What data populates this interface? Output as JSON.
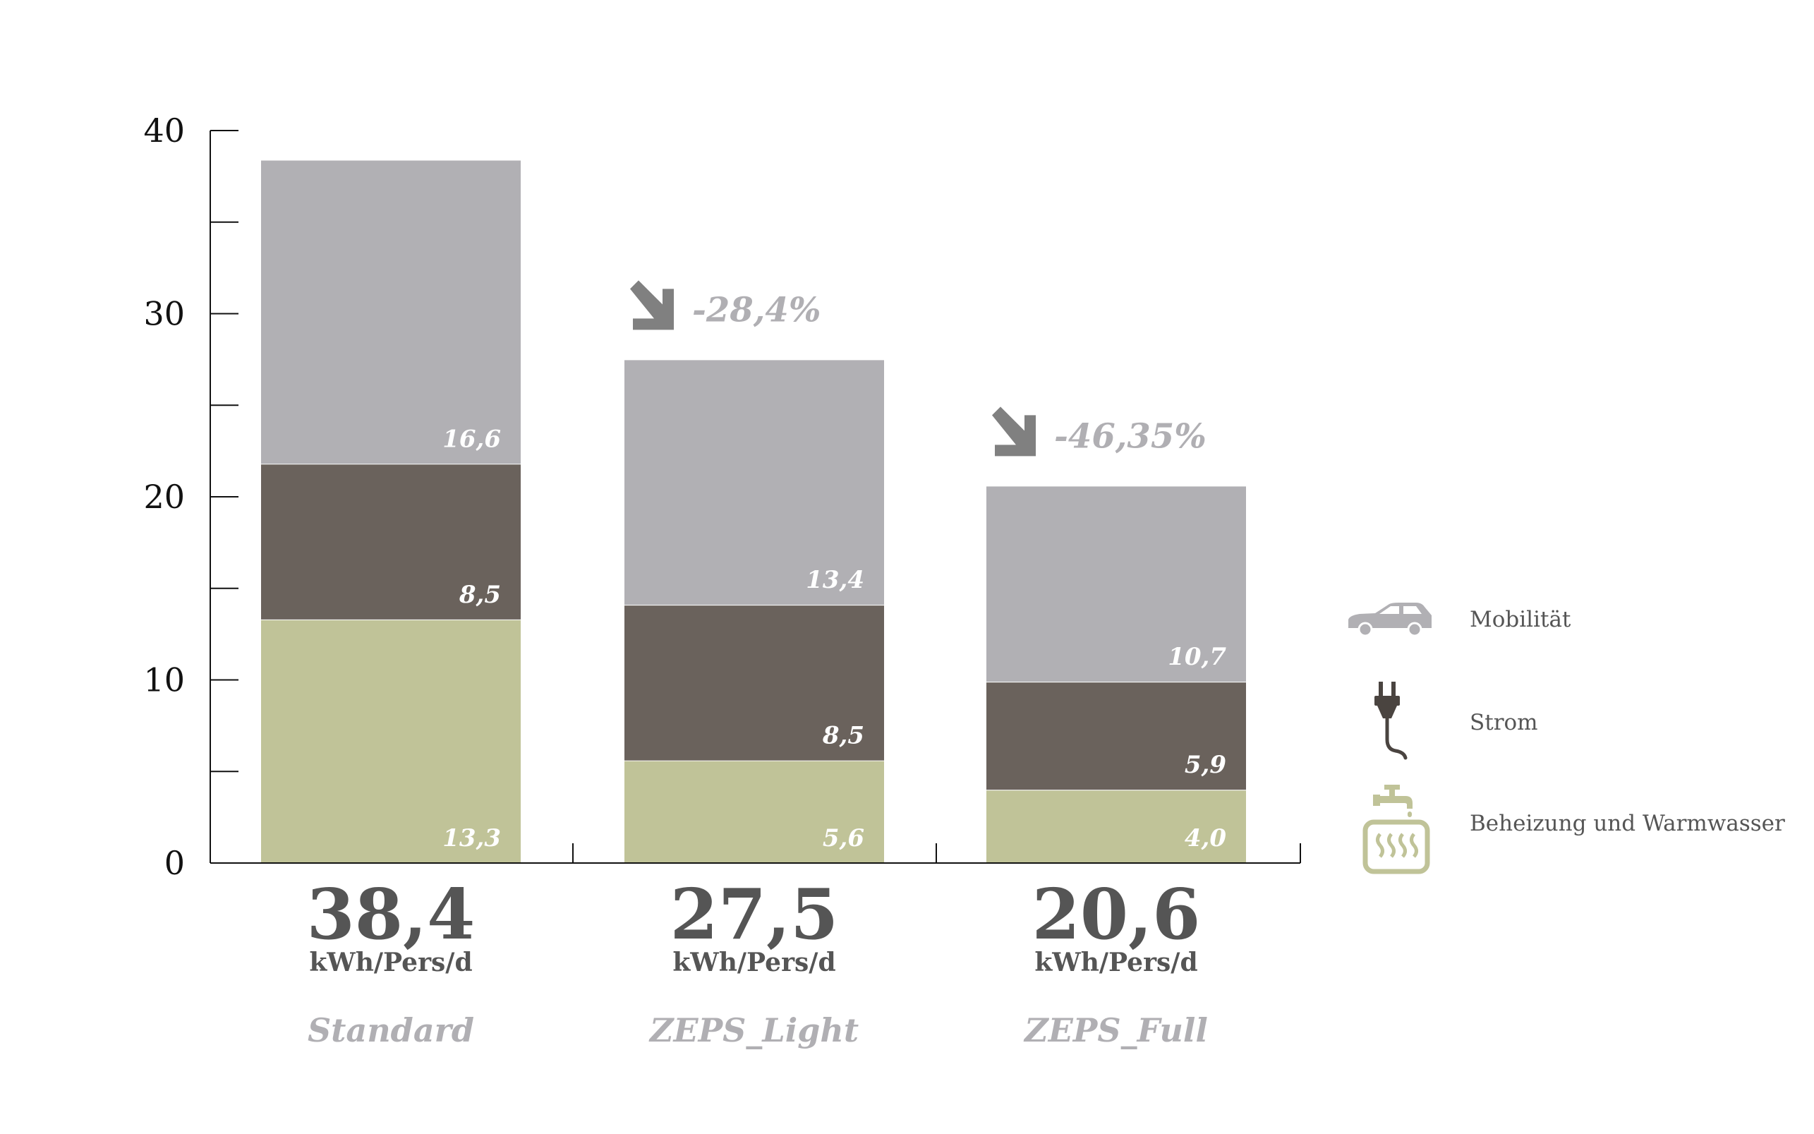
{
  "chart_data": {
    "type": "bar",
    "stacked": true,
    "categories": [
      "Standard",
      "ZEPS_Light",
      "ZEPS_Full"
    ],
    "series": [
      {
        "name": "Beheizung und Warmwasser",
        "values": [
          13.3,
          5.6,
          4.0
        ],
        "labels": [
          "13,3",
          "5,6",
          "4,0"
        ],
        "color": "#c0c398"
      },
      {
        "name": "Strom",
        "values": [
          8.5,
          8.5,
          5.9
        ],
        "labels": [
          "8,5",
          "8,5",
          "5,9"
        ],
        "color": "#6a625c"
      },
      {
        "name": "Mobilität",
        "values": [
          16.6,
          13.4,
          10.7
        ],
        "labels": [
          "16,6",
          "13,4",
          "10,7"
        ],
        "color": "#b1b0b4"
      }
    ],
    "totals": [
      38.4,
      27.5,
      20.6
    ],
    "total_labels": [
      "38,4",
      "27,5",
      "20,6"
    ],
    "unit": "kWh/Pers/d",
    "reductions": [
      null,
      "-28,4%",
      "-46,35%"
    ],
    "yticks": [
      0,
      10,
      20,
      30,
      40
    ],
    "ylim": [
      0,
      40
    ],
    "minor_tick_step": 5,
    "legend_position": "right",
    "legend_icons": [
      "car-icon",
      "plug-icon",
      "heating-tap-icon"
    ],
    "arrow_color": "#808080",
    "axis_color": "#111111"
  }
}
